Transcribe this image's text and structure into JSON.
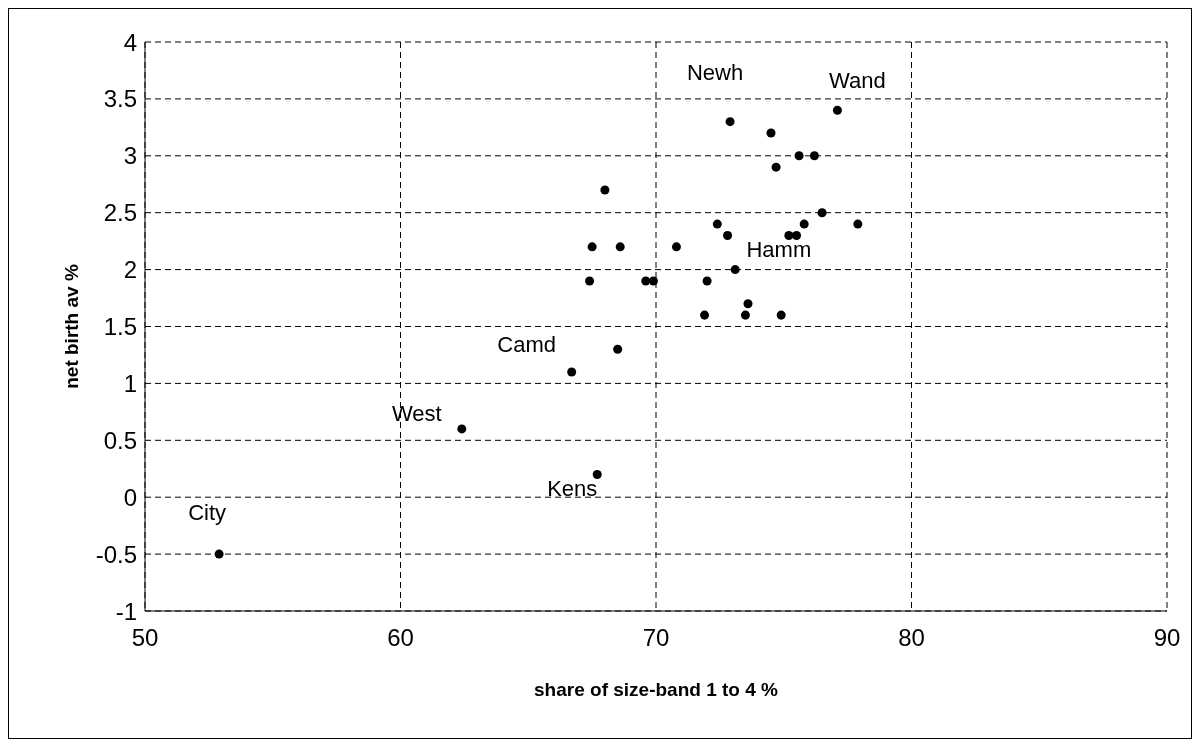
{
  "chart_data": {
    "type": "scatter",
    "xlabel": "share of size-band 1 to 4 %",
    "ylabel": "net birth av %",
    "x": [
      52.9,
      62.4,
      67.7,
      66.7,
      68.5,
      67.4,
      67.5,
      68.0,
      68.6,
      69.6,
      69.9,
      70.8,
      71.9,
      72.0,
      72.4,
      72.8,
      73.1,
      72.9,
      74.5,
      74.7,
      75.6,
      76.2,
      77.1,
      76.5,
      75.8,
      75.2,
      75.5,
      77.9,
      73.6,
      73.5,
      74.9
    ],
    "series": [
      {
        "color": "#000000",
        "values": [
          -0.5,
          0.6,
          0.2,
          1.1,
          1.3,
          1.9,
          2.2,
          2.7,
          2.2,
          1.9,
          1.9,
          2.2,
          1.6,
          1.9,
          2.4,
          2.3,
          2.0,
          3.3,
          3.2,
          2.9,
          3.0,
          3.0,
          3.4,
          2.5,
          2.4,
          2.3,
          2.3,
          2.4,
          1.7,
          1.6,
          1.6
        ]
      }
    ],
    "xlim": [
      50,
      90
    ],
    "xticks": [
      50,
      60,
      70,
      80,
      90
    ],
    "ylim": [
      -1,
      4
    ],
    "yticks": [
      -1,
      -0.5,
      0,
      0.5,
      1,
      1.5,
      2,
      2.5,
      3,
      3.5,
      4
    ],
    "grid": true,
    "marker": "circle",
    "legend": false,
    "annotations": [
      {
        "text": "City",
        "x": 52.9,
        "y": -0.5
      },
      {
        "text": "West",
        "x": 62.4,
        "y": 0.6
      },
      {
        "text": "Kens",
        "x": 67.7,
        "y": 0.2
      },
      {
        "text": "Camd",
        "x": 66.7,
        "y": 1.1
      },
      {
        "text": "Newh",
        "x": 72.9,
        "y": 3.3
      },
      {
        "text": "Wand",
        "x": 77.1,
        "y": 3.4
      },
      {
        "text": "Hamm",
        "x": 75.2,
        "y": 2.3
      }
    ]
  }
}
